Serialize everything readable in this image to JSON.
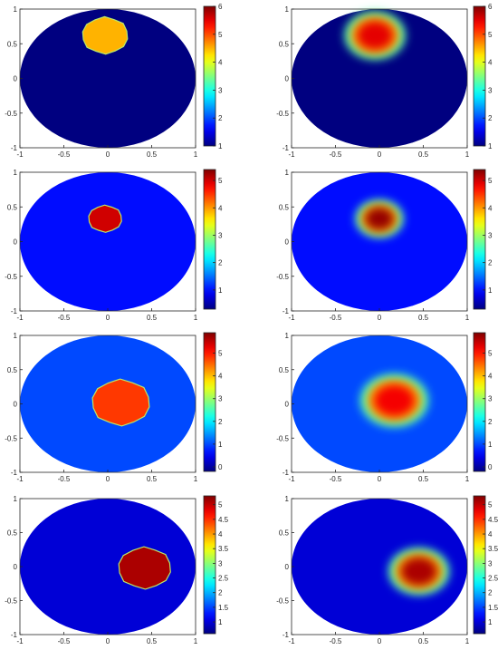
{
  "chart_data": [
    {
      "type": "heatmap",
      "panel": "row1-left (ground truth)",
      "xlim": [
        -1,
        1
      ],
      "ylim": [
        -1,
        1
      ],
      "xticks": [
        "-1",
        "-0.5",
        "0",
        "0.5",
        "1"
      ],
      "yticks": [
        "-1",
        "-0.5",
        "0",
        "0.5",
        "1"
      ],
      "colorbar": {
        "range": [
          1,
          6
        ],
        "ticks": [
          "1",
          "2",
          "3",
          "4",
          "5",
          "6"
        ]
      },
      "background_value": 1.0,
      "inclusion": {
        "center": [
          -0.03,
          0.62
        ],
        "radius": 0.26,
        "value": 4.5
      }
    },
    {
      "type": "heatmap",
      "panel": "row1-right (reconstruction)",
      "xlim": [
        -1,
        1
      ],
      "ylim": [
        -1,
        1
      ],
      "xticks": [
        "-1",
        "-0.5",
        "0",
        "0.5",
        "1"
      ],
      "yticks": [
        "-1",
        "-0.5",
        "0",
        "0.5",
        "1"
      ],
      "colorbar": {
        "range": [
          1,
          6
        ],
        "ticks": [
          "1",
          "2",
          "3",
          "4",
          "5",
          "6"
        ]
      },
      "background_value": 1.0,
      "inclusion": {
        "center": [
          -0.05,
          0.62
        ],
        "radius": 0.33,
        "value": 5.5
      }
    },
    {
      "type": "heatmap",
      "panel": "row2-left (ground truth)",
      "xlim": [
        -1,
        1
      ],
      "ylim": [
        -1,
        1
      ],
      "xticks": [
        "-1",
        "-0.5",
        "0",
        "0.5",
        "1"
      ],
      "yticks": [
        "-1",
        "-0.5",
        "0",
        "0.5",
        "1"
      ],
      "colorbar": {
        "range": [
          0.3,
          5.4
        ],
        "ticks": [
          "1",
          "2",
          "3",
          "4",
          "5"
        ]
      },
      "background_value": 1.0,
      "inclusion": {
        "center": [
          -0.03,
          0.33
        ],
        "radius": 0.19,
        "value": 5.0
      }
    },
    {
      "type": "heatmap",
      "panel": "row2-right (reconstruction)",
      "xlim": [
        -1,
        1
      ],
      "ylim": [
        -1,
        1
      ],
      "xticks": [
        "-1",
        "-0.5",
        "0",
        "0.5",
        "1"
      ],
      "yticks": [
        "-1",
        "-0.5",
        "0",
        "0.5",
        "1"
      ],
      "colorbar": {
        "range": [
          0.3,
          5.4
        ],
        "ticks": [
          "1",
          "2",
          "3",
          "4",
          "5"
        ]
      },
      "background_value": 1.0,
      "inclusion": {
        "center": [
          0.0,
          0.33
        ],
        "radius": 0.26,
        "value": 5.3
      }
    },
    {
      "type": "heatmap",
      "panel": "row3-left (ground truth)",
      "xlim": [
        -1,
        1
      ],
      "ylim": [
        -1,
        1
      ],
      "xticks": [
        "-1",
        "-0.5",
        "0",
        "0.5",
        "1"
      ],
      "yticks": [
        "-1",
        "-0.5",
        "0",
        "0.5",
        "1"
      ],
      "colorbar": {
        "range": [
          -0.2,
          5.9
        ],
        "ticks": [
          "0",
          "1",
          "2",
          "3",
          "4",
          "5"
        ]
      },
      "background_value": 1.0,
      "inclusion": {
        "center": [
          0.15,
          0.02
        ],
        "radius": 0.33,
        "value": 4.8
      }
    },
    {
      "type": "heatmap",
      "panel": "row3-right (reconstruction)",
      "xlim": [
        -1,
        1
      ],
      "ylim": [
        -1,
        1
      ],
      "xticks": [
        "-1",
        "-0.5",
        "0",
        "0.5",
        "1"
      ],
      "yticks": [
        "-1",
        "-0.5",
        "0",
        "0.5",
        "1"
      ],
      "colorbar": {
        "range": [
          -0.2,
          5.9
        ],
        "ticks": [
          "0",
          "1",
          "2",
          "3",
          "4",
          "5"
        ]
      },
      "background_value": 1.0,
      "inclusion": {
        "center": [
          0.17,
          0.05
        ],
        "radius": 0.37,
        "value": 5.2
      }
    },
    {
      "type": "heatmap",
      "panel": "row4-left (ground truth)",
      "xlim": [
        -1,
        1
      ],
      "ylim": [
        -1,
        1
      ],
      "xticks": [
        "-1",
        "-0.5",
        "0",
        "0.5",
        "1"
      ],
      "yticks": [
        "-1",
        "-0.5",
        "0",
        "0.5",
        "1"
      ],
      "colorbar": {
        "range": [
          0.6,
          5.3
        ],
        "ticks": [
          "1",
          "1.5",
          "2",
          "2.5",
          "3",
          "3.5",
          "4",
          "4.5",
          "5"
        ]
      },
      "background_value": 1.0,
      "inclusion": {
        "center": [
          0.42,
          -0.02
        ],
        "radius": 0.3,
        "value": 5.1
      }
    },
    {
      "type": "heatmap",
      "panel": "row4-right (reconstruction)",
      "xlim": [
        -1,
        1
      ],
      "ylim": [
        -1,
        1
      ],
      "xticks": [
        "-1",
        "-0.5",
        "0",
        "0.5",
        "1"
      ],
      "yticks": [
        "-1",
        "-0.5",
        "0",
        "0.5",
        "1"
      ],
      "colorbar": {
        "range": [
          0.6,
          5.3
        ],
        "ticks": [
          "1",
          "1.5",
          "2",
          "2.5",
          "3",
          "3.5",
          "4",
          "4.5",
          "5"
        ]
      },
      "background_value": 1.0,
      "inclusion": {
        "center": [
          0.45,
          -0.07
        ],
        "radius": 0.33,
        "value": 5.1
      }
    }
  ]
}
